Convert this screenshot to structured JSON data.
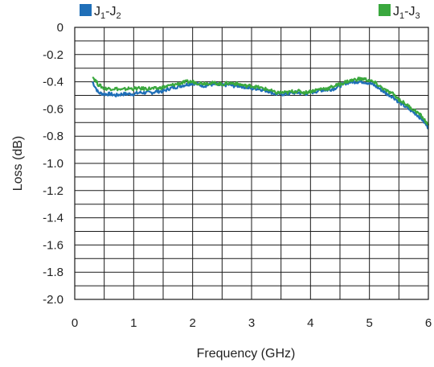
{
  "chart_data": {
    "type": "line",
    "xlabel": "Frequency (GHz)",
    "ylabel": "Loss (dB)",
    "xlim": [
      0,
      6
    ],
    "ylim": [
      -2.0,
      0
    ],
    "x_ticks": [
      "0",
      "1",
      "2",
      "3",
      "4",
      "5",
      "6"
    ],
    "y_ticks": [
      "0",
      "-0.2",
      "-0.4",
      "-0.6",
      "-0.8",
      "-1.0",
      "-1.2",
      "-1.4",
      "-1.6",
      "-1.8",
      "-2.0"
    ],
    "x_tick_step": 0.5,
    "y_tick_step": 0.1,
    "grid": true,
    "legend_placement": "top",
    "series": [
      {
        "name": "J1-J2",
        "name_main": "J",
        "name_sub1": "1",
        "name_mid": "-J",
        "name_sub2": "2",
        "color": "#1f6fb8",
        "x": [
          0.3,
          0.4,
          0.5,
          0.6,
          0.7,
          0.8,
          0.9,
          1.0,
          1.1,
          1.2,
          1.3,
          1.4,
          1.5,
          1.6,
          1.7,
          1.8,
          1.9,
          2.0,
          2.1,
          2.2,
          2.3,
          2.4,
          2.5,
          2.6,
          2.7,
          2.8,
          2.9,
          3.0,
          3.1,
          3.2,
          3.3,
          3.4,
          3.5,
          3.6,
          3.7,
          3.8,
          3.9,
          4.0,
          4.1,
          4.2,
          4.3,
          4.4,
          4.5,
          4.6,
          4.7,
          4.8,
          4.9,
          5.0,
          5.1,
          5.2,
          5.3,
          5.4,
          5.5,
          5.6,
          5.7,
          5.8,
          5.9,
          6.0
        ],
        "y": [
          -0.4,
          -0.48,
          -0.49,
          -0.49,
          -0.5,
          -0.49,
          -0.49,
          -0.49,
          -0.48,
          -0.48,
          -0.48,
          -0.47,
          -0.47,
          -0.45,
          -0.44,
          -0.43,
          -0.42,
          -0.41,
          -0.42,
          -0.43,
          -0.42,
          -0.42,
          -0.43,
          -0.42,
          -0.43,
          -0.43,
          -0.44,
          -0.45,
          -0.45,
          -0.46,
          -0.47,
          -0.49,
          -0.49,
          -0.49,
          -0.48,
          -0.48,
          -0.49,
          -0.48,
          -0.47,
          -0.46,
          -0.46,
          -0.45,
          -0.43,
          -0.41,
          -0.4,
          -0.4,
          -0.4,
          -0.41,
          -0.43,
          -0.46,
          -0.49,
          -0.51,
          -0.55,
          -0.58,
          -0.61,
          -0.64,
          -0.68,
          -0.74
        ]
      },
      {
        "name": "J1-J3",
        "name_main": "J",
        "name_sub1": "1",
        "name_mid": "-J",
        "name_sub2": "3",
        "color": "#3aa83e",
        "x": [
          0.3,
          0.4,
          0.5,
          0.6,
          0.7,
          0.8,
          0.9,
          1.0,
          1.1,
          1.2,
          1.3,
          1.4,
          1.5,
          1.6,
          1.7,
          1.8,
          1.9,
          2.0,
          2.1,
          2.2,
          2.3,
          2.4,
          2.5,
          2.6,
          2.7,
          2.8,
          2.9,
          3.0,
          3.1,
          3.2,
          3.3,
          3.4,
          3.5,
          3.6,
          3.7,
          3.8,
          3.9,
          4.0,
          4.1,
          4.2,
          4.3,
          4.4,
          4.5,
          4.6,
          4.7,
          4.8,
          4.9,
          5.0,
          5.1,
          5.2,
          5.3,
          5.4,
          5.5,
          5.6,
          5.7,
          5.8,
          5.9,
          6.0
        ],
        "y": [
          -0.36,
          -0.42,
          -0.45,
          -0.45,
          -0.45,
          -0.46,
          -0.45,
          -0.45,
          -0.45,
          -0.45,
          -0.45,
          -0.45,
          -0.44,
          -0.43,
          -0.42,
          -0.41,
          -0.4,
          -0.4,
          -0.41,
          -0.41,
          -0.41,
          -0.41,
          -0.42,
          -0.41,
          -0.41,
          -0.42,
          -0.43,
          -0.43,
          -0.44,
          -0.45,
          -0.46,
          -0.48,
          -0.48,
          -0.48,
          -0.47,
          -0.47,
          -0.48,
          -0.47,
          -0.46,
          -0.45,
          -0.45,
          -0.43,
          -0.42,
          -0.4,
          -0.39,
          -0.38,
          -0.38,
          -0.39,
          -0.41,
          -0.44,
          -0.47,
          -0.49,
          -0.53,
          -0.56,
          -0.59,
          -0.62,
          -0.66,
          -0.72
        ]
      }
    ]
  }
}
